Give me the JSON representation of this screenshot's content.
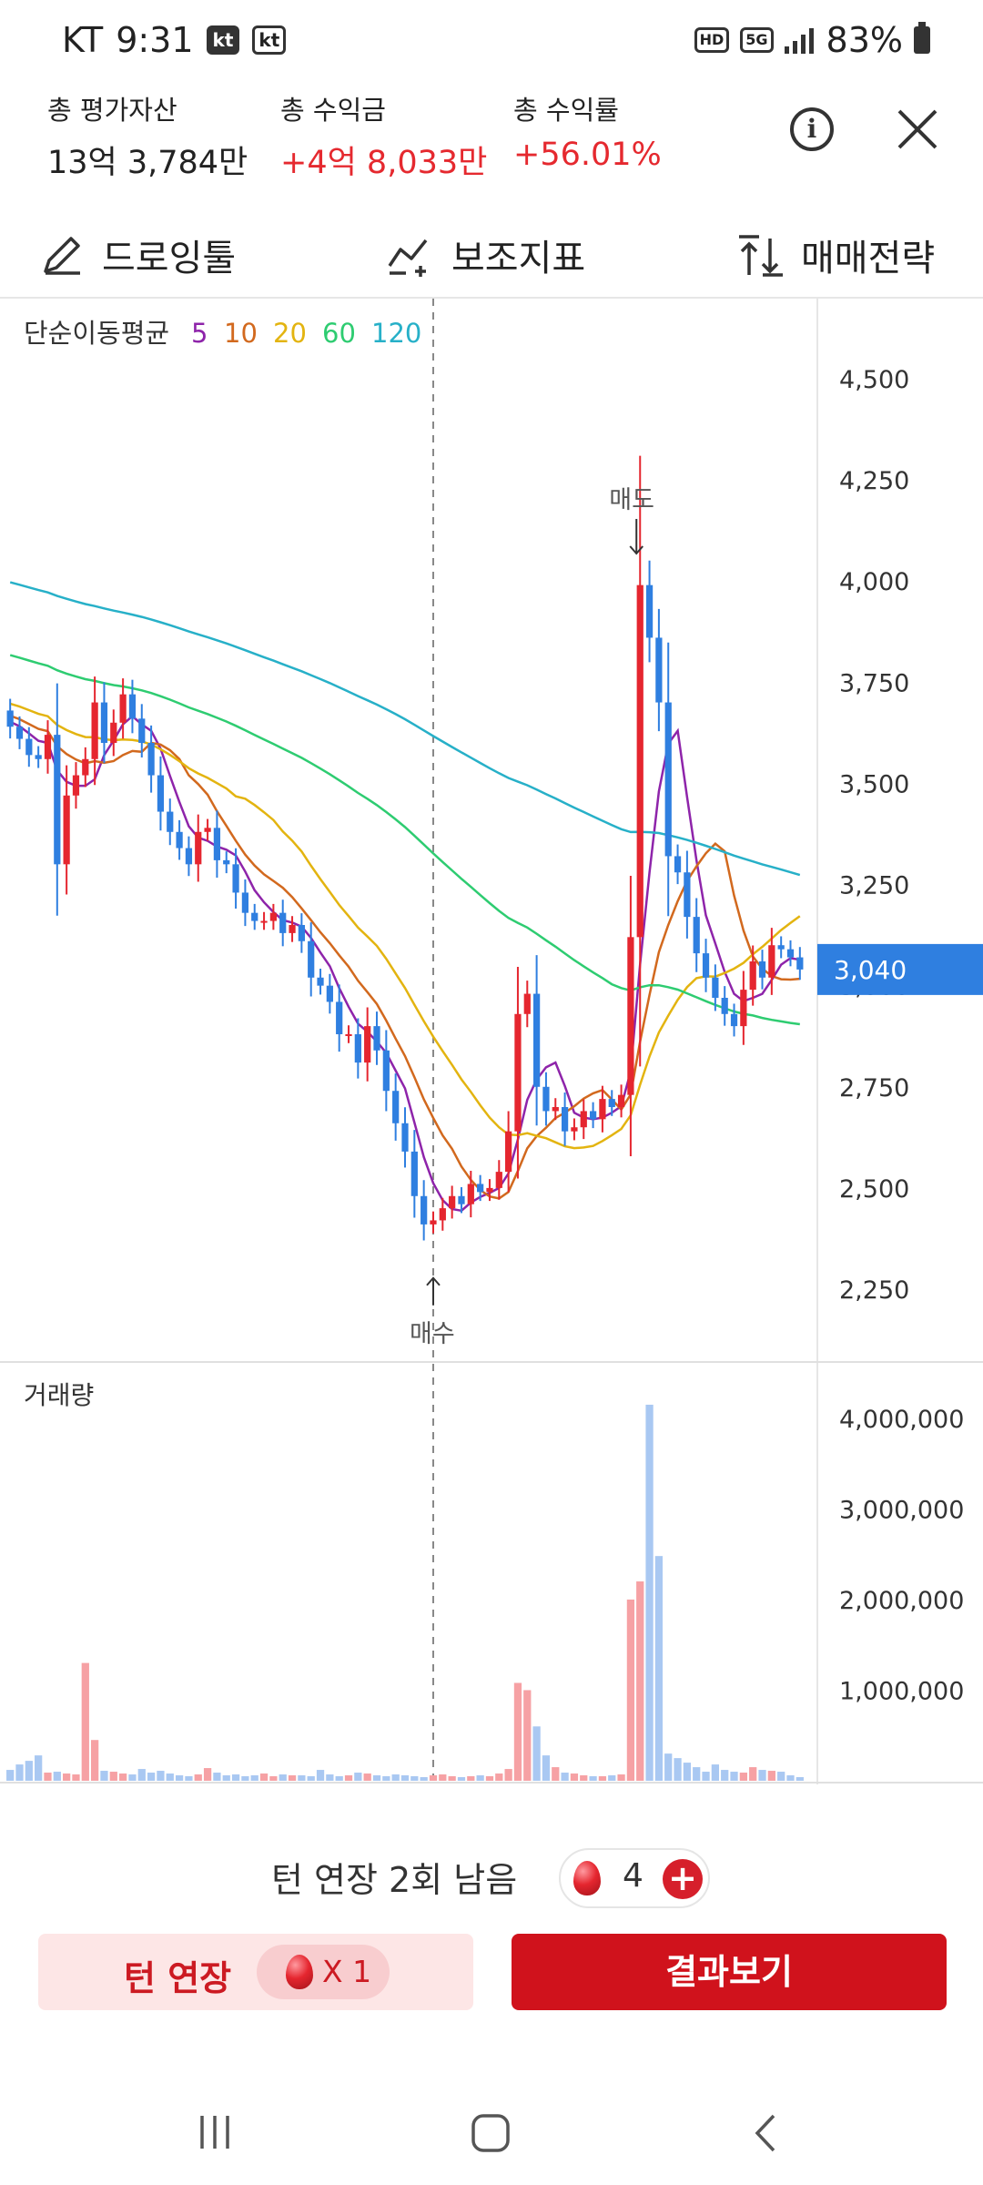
{
  "status": {
    "carrier": "KT",
    "time": "9:31",
    "badge1": "kt",
    "badge2": "kt",
    "hd": "HD",
    "net": "5G",
    "battery": "83%"
  },
  "summary": {
    "total_assets_label": "총 평가자산",
    "total_assets_value": "13억 3,784만",
    "total_profit_label": "총 수익금",
    "total_profit_value": "+4억 8,033만",
    "total_return_label": "총 수익률",
    "total_return_value": "+56.01%"
  },
  "header_icons": {
    "info": "info-icon",
    "close": "close-icon"
  },
  "toolbar": {
    "drawing_label": "드로잉툴",
    "indicator_label": "보조지표",
    "strategy_label": "매매전략",
    "drawing_icon": "pencil-icon",
    "indicator_icon": "indicator-icon",
    "strategy_icon": "sort-arrows-icon"
  },
  "chart_data": [
    {
      "type": "candlestick",
      "legend_title": "단순이동평균",
      "ma_periods": [
        "5",
        "10",
        "20",
        "60",
        "120"
      ],
      "ma_colors": [
        "#8e24aa",
        "#d2691e",
        "#e3b410",
        "#2ecc71",
        "#27b0c8"
      ],
      "up_color": "#e5262f",
      "down_color": "#2f7fe0",
      "y_ticks": [
        2250,
        2500,
        2750,
        3000,
        3250,
        3500,
        3750,
        4000,
        4250,
        4500
      ],
      "y_tick_labels": [
        "2,250",
        "2,500",
        "2,750",
        "3,000",
        "3,250",
        "3,500",
        "3,750",
        "4,000",
        "4,250",
        "4,500"
      ],
      "ylim": [
        2100,
        4570
      ],
      "current_price": 3040,
      "current_price_label": "3,040",
      "buy_label": "매수",
      "sell_label": "매도",
      "buy_index": 45,
      "sell_index": 67,
      "buy_price": 2300,
      "sell_price": 4050,
      "vline_index": 45,
      "closes": [
        3640,
        3610,
        3570,
        3560,
        3620,
        3300,
        3470,
        3520,
        3560,
        3700,
        3600,
        3650,
        3720,
        3660,
        3600,
        3520,
        3430,
        3380,
        3340,
        3300,
        3380,
        3390,
        3310,
        3300,
        3230,
        3180,
        3160,
        3160,
        3180,
        3130,
        3150,
        3110,
        3020,
        3000,
        2960,
        2880,
        2880,
        2810,
        2900,
        2840,
        2740,
        2660,
        2590,
        2480,
        2410,
        2420,
        2450,
        2480,
        2460,
        2510,
        2490,
        2500,
        2540,
        2640,
        2930,
        2980,
        2750,
        2690,
        2700,
        2640,
        2650,
        2690,
        2670,
        2720,
        2700,
        2730,
        3120,
        3990,
        3860,
        3700,
        3320,
        3280,
        3170,
        3080,
        3020,
        2970,
        2930,
        2900,
        2990,
        3060,
        3020,
        3100,
        3090,
        3070,
        3040
      ],
      "volume_title": "거래량",
      "volume_ticks": [
        1000000,
        2000000,
        3000000,
        4000000
      ],
      "volume_tick_labels": [
        "1,000,000",
        "2,000,000",
        "3,000,000",
        "4,000,000"
      ],
      "volume_ylim": [
        0,
        4300000
      ],
      "volumes": [
        120000,
        180000,
        220000,
        280000,
        90000,
        100000,
        80000,
        70000,
        1300000,
        450000,
        110000,
        100000,
        80000,
        70000,
        130000,
        90000,
        110000,
        80000,
        60000,
        50000,
        70000,
        140000,
        90000,
        60000,
        70000,
        50000,
        60000,
        80000,
        50000,
        70000,
        60000,
        60000,
        50000,
        120000,
        70000,
        50000,
        60000,
        90000,
        80000,
        60000,
        50000,
        70000,
        60000,
        50000,
        40000,
        60000,
        70000,
        50000,
        40000,
        50000,
        60000,
        50000,
        80000,
        130000,
        1080000,
        1000000,
        600000,
        280000,
        150000,
        90000,
        80000,
        60000,
        50000,
        50000,
        60000,
        70000,
        2000000,
        2200000,
        4150000,
        2480000,
        300000,
        250000,
        200000,
        150000,
        100000,
        180000,
        120000,
        100000,
        90000,
        150000,
        120000,
        110000,
        100000,
        60000,
        40000
      ]
    }
  ],
  "bottom": {
    "turn_extend_text": "턴 연장 2회 남음",
    "coin_count": "4",
    "plus_symbol": "+",
    "extend_button_label": "턴 연장",
    "extend_cost": "X 1",
    "result_button_label": "결과보기"
  },
  "nav": {
    "recent": "recent-apps-icon",
    "home": "home-icon",
    "back": "back-icon"
  }
}
